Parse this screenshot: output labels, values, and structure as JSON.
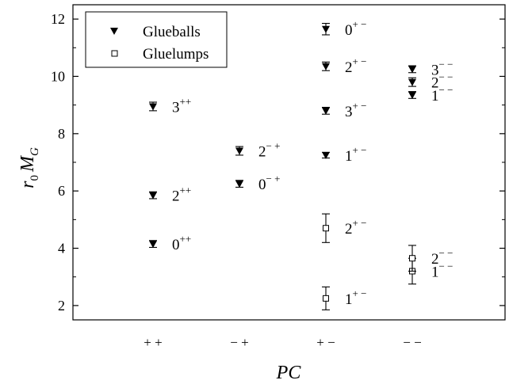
{
  "chart_data": {
    "type": "scatter",
    "xlabel": "PC",
    "ylabel_main": "r",
    "ylabel_sub0": "0",
    "ylabel_main2": "M",
    "ylabel_subG": "G",
    "categories": [
      {
        "label": "+ +"
      },
      {
        "label": "− +"
      },
      {
        "label": "+ −"
      },
      {
        "label": "− −"
      }
    ],
    "yticks": [
      "2",
      "4",
      "6",
      "8",
      "10",
      "12"
    ],
    "ylim": [
      1.5,
      12.5
    ],
    "legend": [
      {
        "name": "Glueballs",
        "marker": "triangle-down-filled"
      },
      {
        "name": "Gluelumps",
        "marker": "square-open"
      }
    ],
    "series": [
      {
        "name": "Glueballs",
        "points": [
          {
            "cat": 0,
            "y": 4.15,
            "err": 0.12,
            "J": "0",
            "pc": "++"
          },
          {
            "cat": 0,
            "y": 5.85,
            "err": 0.12,
            "J": "2",
            "pc": "++"
          },
          {
            "cat": 0,
            "y": 8.95,
            "err": 0.15,
            "J": "3",
            "pc": "++"
          },
          {
            "cat": 1,
            "y": 6.25,
            "err": 0.12,
            "J": "0",
            "pc": "− +"
          },
          {
            "cat": 1,
            "y": 7.4,
            "err": 0.15,
            "J": "2",
            "pc": "− +"
          },
          {
            "cat": 2,
            "y": 7.25,
            "err": 0.1,
            "J": "1",
            "pc": "+ −"
          },
          {
            "cat": 2,
            "y": 8.8,
            "err": 0.12,
            "J": "3",
            "pc": "+ −"
          },
          {
            "cat": 2,
            "y": 10.35,
            "err": 0.15,
            "J": "2",
            "pc": "+ −"
          },
          {
            "cat": 2,
            "y": 11.65,
            "err": 0.2,
            "J": "0",
            "pc": "+ −"
          },
          {
            "cat": 3,
            "y": 9.35,
            "err": 0.12,
            "J": "1",
            "pc": "− −"
          },
          {
            "cat": 3,
            "y": 9.8,
            "err": 0.15,
            "J": "2",
            "pc": "− −"
          },
          {
            "cat": 3,
            "y": 10.25,
            "err": 0.12,
            "J": "3",
            "pc": "− −"
          }
        ]
      },
      {
        "name": "Gluelumps",
        "points": [
          {
            "cat": 2,
            "y": 2.25,
            "err": 0.4,
            "J": "1",
            "pc": "+ −"
          },
          {
            "cat": 2,
            "y": 4.7,
            "err": 0.5,
            "J": "2",
            "pc": "+ −"
          },
          {
            "cat": 3,
            "y": 3.2,
            "err": 0.45,
            "J": "1",
            "pc": "− −"
          },
          {
            "cat": 3,
            "y": 3.65,
            "err": 0.45,
            "J": "2",
            "pc": "− −"
          }
        ]
      }
    ]
  }
}
